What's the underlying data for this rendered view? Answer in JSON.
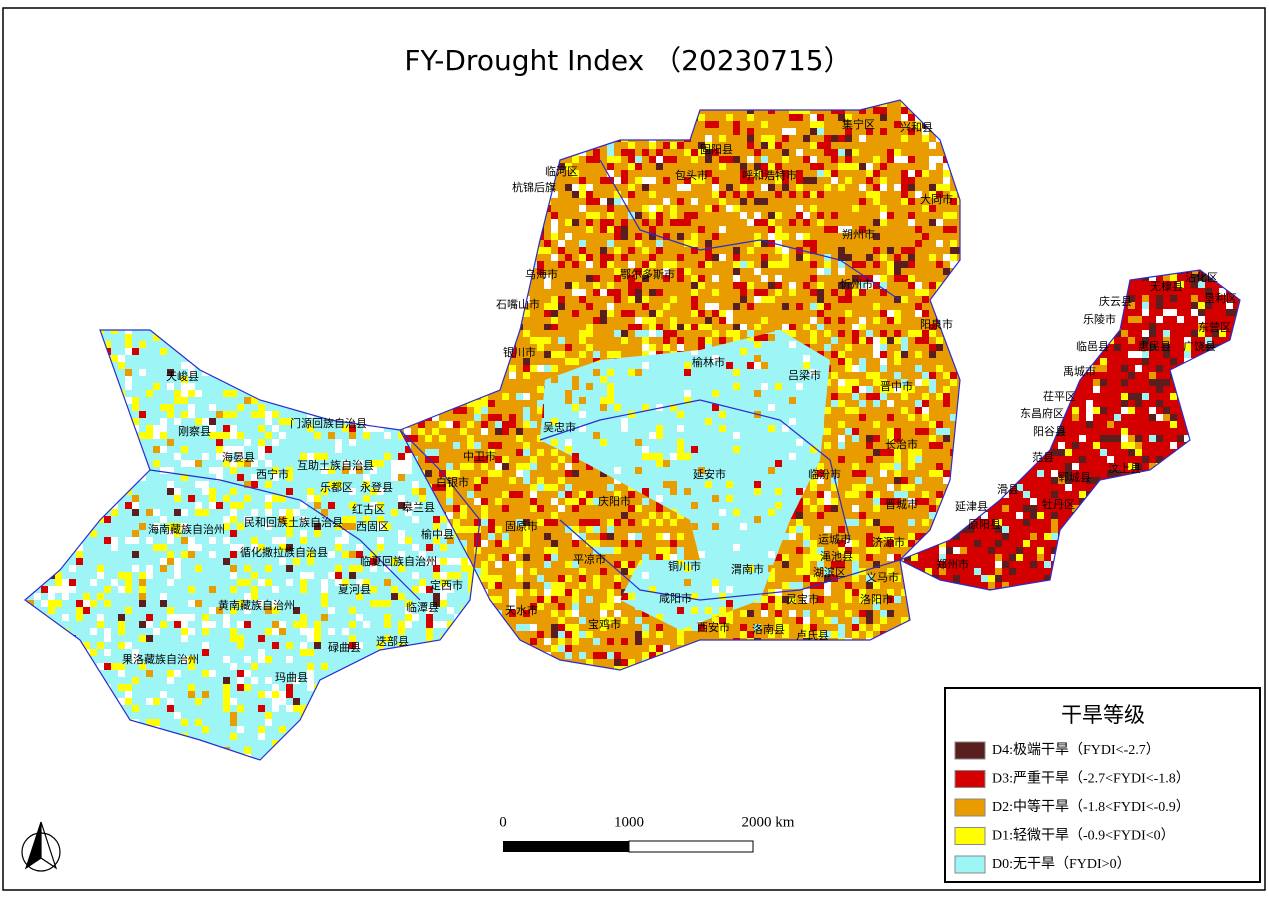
{
  "title": "FY-Drought Index （20230715）",
  "legend": {
    "title": "干旱等级",
    "items": [
      {
        "label": "D4:极端干旱（FYDI<-2.7）",
        "color": "#5a1e1e"
      },
      {
        "label": "D3:严重干旱（-2.7<FYDI<-1.8）",
        "color": "#d40000"
      },
      {
        "label": "D2:中等干旱（-1.8<FYDI<-0.9）",
        "color": "#e89c00"
      },
      {
        "label": "D1:轻微干旱（-0.9<FYDI<0）",
        "color": "#ffff00"
      },
      {
        "label": "D0:无干旱（FYDI>0）",
        "color": "#9ef5f5"
      }
    ]
  },
  "scale_bar": {
    "labels": [
      "0",
      "1000",
      "2000 km"
    ]
  },
  "places": [
    "集宁区",
    "兴和县",
    "临河区",
    "杭锦后旗",
    "固阳县",
    "包头市",
    "呼和浩特市",
    "大同市",
    "乌海市",
    "石嘴山市",
    "银川市",
    "鄂尔多斯市",
    "榆林市",
    "吕梁市",
    "朔州市",
    "忻州市",
    "阳泉市",
    "晋中市",
    "长治市",
    "临汾市",
    "晋城市",
    "运城市",
    "济源市",
    "延安市",
    "吴忠市",
    "中卫市",
    "白银市",
    "固原市",
    "庆阳市",
    "平凉市",
    "铜川市",
    "渭南市",
    "渑池县",
    "湖滨区",
    "义马市",
    "洛阳市",
    "郑州市",
    "灵宝市",
    "洛南县",
    "卢氏县",
    "西安市",
    "咸阳市",
    "宝鸡市",
    "天水市",
    "定西市",
    "临夏回族自治州",
    "夏河县",
    "碌曲县",
    "迭部县",
    "临潭县",
    "榆中县",
    "皋兰县",
    "红古区",
    "西固区",
    "永登县",
    "乐都区",
    "互助土族自治县",
    "门源回族自治县",
    "西宁市",
    "海晏县",
    "刚察县",
    "天峻县",
    "海南藏族自治州",
    "民和回族土族自治县",
    "循化撒拉族自治县",
    "黄南藏族自治州",
    "果洛藏族自治州",
    "玛曲县",
    "原阳县",
    "延津县",
    "滑县",
    "牡丹区",
    "郓城县",
    "汶上县",
    "范县",
    "阳谷县",
    "东昌府区",
    "茌平区",
    "禹城市",
    "临邑县",
    "乐陵市",
    "庆云县",
    "无棣县",
    "沾化区",
    "垦利区",
    "东营区",
    "广饶县",
    "惠民县"
  ]
}
